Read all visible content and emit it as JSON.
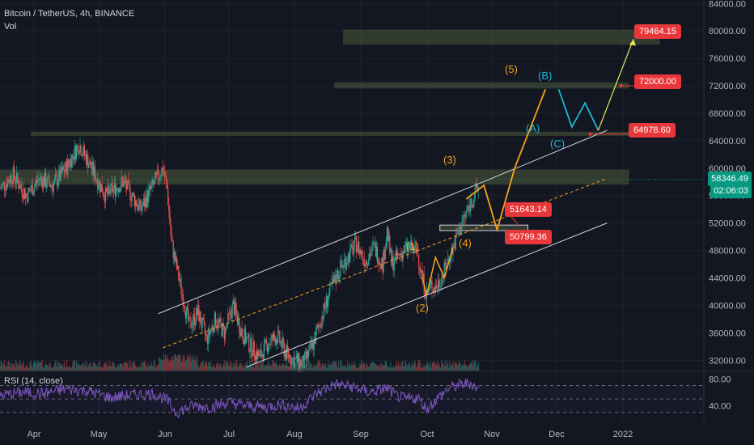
{
  "header": {
    "symbol": "Bitcoin / TetherUS, 4h, BINANCE",
    "volume_label": "Vol",
    "rsi_label": "RSI (14, close)"
  },
  "current_price": {
    "value": "58346.49",
    "countdown": "02:06:03",
    "color": "#089981"
  },
  "levels": {
    "l1": "79464.15",
    "l2": "72000.00",
    "l3": "64978.60",
    "l4": "51643.14",
    "l5": "50799.36"
  },
  "waves": {
    "w1": "(1)",
    "w2": "(2)",
    "w3": "(3)",
    "w4": "(4)",
    "w5": "(5)",
    "wa": "(A)",
    "wb": "(B)",
    "wc": "(C)"
  },
  "colors": {
    "up": "#26a69a",
    "down": "#ef5350",
    "wave": "#f7a21b",
    "corr": "#1fb8d4",
    "level": "#e8373a",
    "rsi": "#7e57c2"
  },
  "chart_data": {
    "type": "candlestick",
    "title": "Bitcoin / TetherUS, 4h, BINANCE",
    "x_ticks": [
      "Apr",
      "May",
      "Jun",
      "Jul",
      "Aug",
      "Sep",
      "Oct",
      "Nov",
      "Dec",
      "2022"
    ],
    "y_ticks": [
      "84000.00",
      "80000.00",
      "76000.00",
      "72000.00",
      "68000.00",
      "64000.00",
      "60000.00",
      "56000.00",
      "52000.00",
      "48000.00",
      "44000.00",
      "40000.00",
      "36000.00",
      "32000.00"
    ],
    "ylim": [
      30500,
      84500
    ],
    "rsi_ticks": [
      "80.00",
      "40.00"
    ],
    "rsi_ylim": [
      20,
      90
    ],
    "price_path": [
      [
        0,
        57000
      ],
      [
        3,
        59000
      ],
      [
        6,
        56000
      ],
      [
        9,
        58500
      ],
      [
        12,
        57500
      ],
      [
        15,
        60000
      ],
      [
        18,
        63500
      ],
      [
        20,
        61000
      ],
      [
        24,
        56000
      ],
      [
        28,
        58000
      ],
      [
        32,
        54000
      ],
      [
        34,
        56500
      ],
      [
        37,
        60000
      ],
      [
        38,
        57000
      ],
      [
        39,
        49000
      ],
      [
        41,
        43000
      ],
      [
        43,
        37000
      ],
      [
        45,
        39000
      ],
      [
        47,
        35000
      ],
      [
        49,
        38000
      ],
      [
        51,
        36000
      ],
      [
        53,
        40000
      ],
      [
        55,
        36000
      ],
      [
        57,
        34000
      ],
      [
        59,
        32500
      ],
      [
        61,
        34500
      ],
      [
        63,
        35500
      ],
      [
        65,
        33000
      ],
      [
        67,
        32000
      ],
      [
        69,
        31500
      ],
      [
        71,
        34000
      ],
      [
        73,
        38000
      ],
      [
        75,
        42000
      ],
      [
        77,
        45000
      ],
      [
        79,
        47000
      ],
      [
        81,
        49000
      ],
      [
        83,
        46500
      ],
      [
        85,
        48500
      ],
      [
        87,
        46000
      ],
      [
        88,
        51000
      ],
      [
        89,
        46000
      ],
      [
        91,
        47500
      ],
      [
        93,
        48500
      ],
      [
        95,
        47500
      ],
      [
        96,
        44000
      ],
      [
        97,
        41500
      ],
      [
        98,
        43000
      ],
      [
        99,
        42500
      ],
      [
        101,
        45000
      ],
      [
        103,
        48500
      ],
      [
        105,
        52000
      ],
      [
        107,
        55000
      ],
      [
        109,
        57500
      ]
    ],
    "rsi_path": [
      [
        0,
        55
      ],
      [
        5,
        60
      ],
      [
        10,
        58
      ],
      [
        15,
        65
      ],
      [
        20,
        62
      ],
      [
        25,
        52
      ],
      [
        30,
        56
      ],
      [
        35,
        58
      ],
      [
        38,
        48
      ],
      [
        40,
        30
      ],
      [
        44,
        40
      ],
      [
        48,
        38
      ],
      [
        52,
        45
      ],
      [
        56,
        40
      ],
      [
        60,
        38
      ],
      [
        64,
        42
      ],
      [
        68,
        36
      ],
      [
        72,
        58
      ],
      [
        76,
        72
      ],
      [
        80,
        68
      ],
      [
        84,
        60
      ],
      [
        88,
        66
      ],
      [
        90,
        55
      ],
      [
        92,
        50
      ],
      [
        95,
        52
      ],
      [
        97,
        35
      ],
      [
        99,
        48
      ],
      [
        102,
        66
      ],
      [
        105,
        72
      ],
      [
        107,
        74
      ],
      [
        109,
        62
      ]
    ],
    "channel": {
      "upper": [
        [
          36,
          38800
        ],
        [
          111,
          58300
        ]
      ],
      "mid": [
        [
          37,
          33800
        ],
        [
          138,
          58500
        ]
      ],
      "lower": [
        [
          56,
          31000
        ],
        [
          138,
          52000
        ]
      ]
    },
    "projection_path": [
      [
        106,
        55500
      ],
      [
        110,
        57500
      ],
      [
        113,
        51000
      ],
      [
        117,
        60000
      ],
      [
        124,
        71500
      ]
    ],
    "correction_path": [
      [
        127,
        71500
      ],
      [
        130,
        66000
      ],
      [
        133,
        69500
      ],
      [
        136,
        65500
      ]
    ],
    "target_path": [
      [
        136,
        65500
      ],
      [
        144,
        78800
      ]
    ],
    "zones": [
      {
        "x0": 78,
        "x1": 150,
        "y0": 78000,
        "y1": 80200
      },
      {
        "x0": 76,
        "x1": 143,
        "y0": 71600,
        "y1": 72500
      },
      {
        "x0": 7,
        "x1": 143,
        "y0": 64700,
        "y1": 65300
      },
      {
        "x0": 0,
        "x1": 143,
        "y0": 57600,
        "y1": 59800
      },
      {
        "x0": 100,
        "x1": 120,
        "y0": 50900,
        "y1": 51700
      }
    ]
  }
}
